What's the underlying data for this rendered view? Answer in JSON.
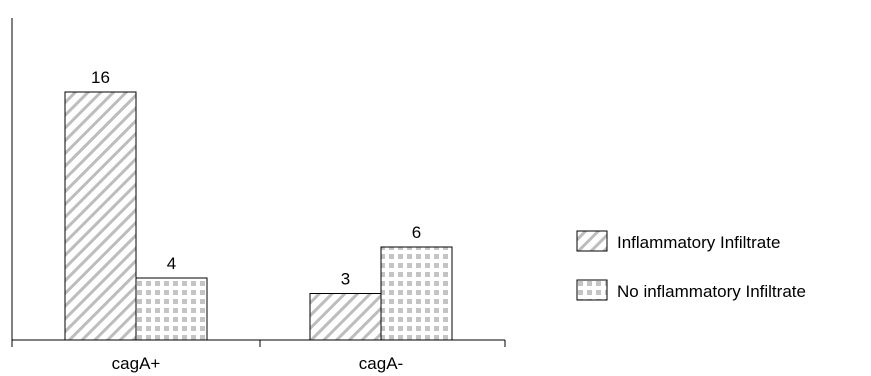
{
  "chart_data": {
    "type": "bar",
    "categories": [
      "cagA+",
      "cagA-"
    ],
    "series": [
      {
        "name": "Inflammatory Infiltrate",
        "values": [
          16,
          3
        ],
        "pattern": "diagonal-hatch"
      },
      {
        "name": "No inflammatory Infiltrate",
        "values": [
          4,
          6
        ],
        "pattern": "dotted-grid"
      }
    ],
    "title": "",
    "xlabel": "",
    "ylabel": "",
    "ylim": [
      0,
      18
    ],
    "grid": false,
    "legend": "right",
    "colors": {
      "bar_fill": "#ffffff",
      "pattern": "#bdbdbd",
      "stroke": "#000000"
    }
  }
}
